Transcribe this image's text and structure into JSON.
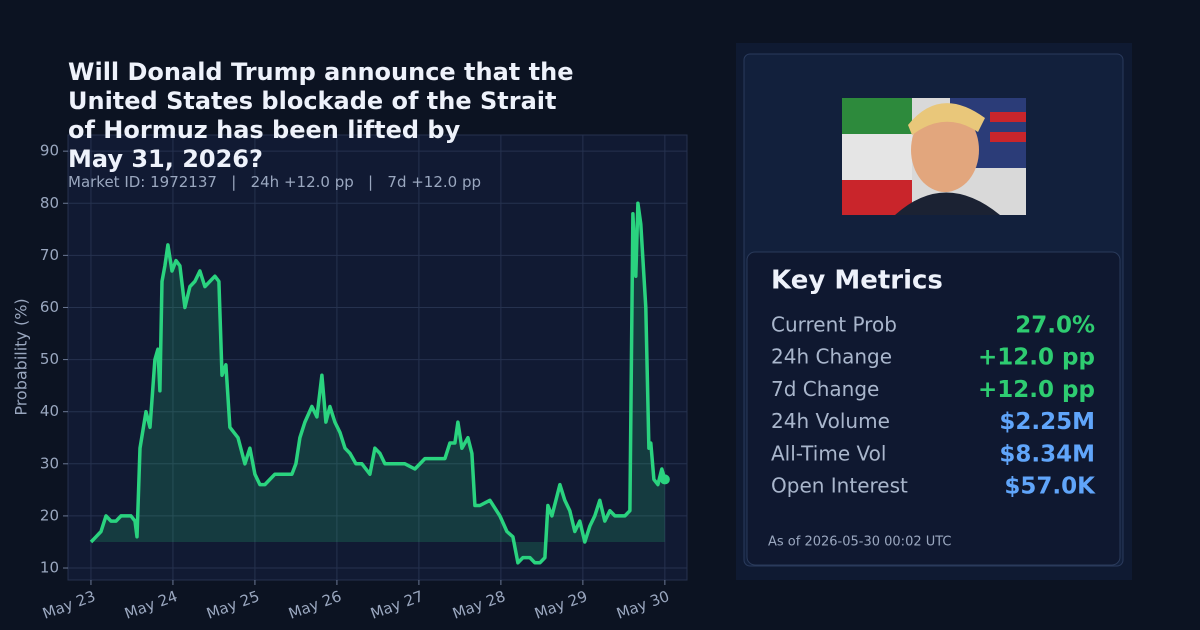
{
  "chart_data": {
    "type": "line",
    "title": "Will Donald Trump announce that the\nUnited States blockade of the Strait\nof Hormuz has been lifted by\nMay 31, 2026?",
    "subtitle": "Market ID: 1972137   |   24h +12.0 pp   |   7d +12.0 pp",
    "ylabel": "Probability (%)",
    "color": "#2ad37f",
    "area_baseline": 15,
    "grid": true,
    "end_marker": true,
    "x": [
      23.0,
      23.061,
      23.122,
      23.183,
      23.244,
      23.305,
      23.366,
      23.427,
      23.488,
      23.537,
      23.561,
      23.598,
      23.671,
      23.72,
      23.78,
      23.817,
      23.841,
      23.866,
      23.902,
      23.939,
      23.988,
      24.037,
      24.085,
      24.146,
      24.207,
      24.268,
      24.329,
      24.39,
      24.451,
      24.512,
      24.561,
      24.598,
      24.646,
      24.695,
      24.793,
      24.878,
      24.939,
      25.0,
      25.061,
      25.122,
      25.183,
      25.244,
      25.366,
      25.451,
      25.5,
      25.549,
      25.61,
      25.695,
      25.756,
      25.817,
      25.866,
      25.915,
      25.976,
      26.037,
      26.098,
      26.159,
      26.232,
      26.305,
      26.402,
      26.463,
      26.524,
      26.585,
      26.707,
      26.829,
      26.951,
      27.073,
      27.195,
      27.317,
      27.378,
      27.439,
      27.476,
      27.524,
      27.598,
      27.646,
      27.683,
      27.744,
      27.866,
      27.988,
      28.073,
      28.146,
      28.207,
      28.268,
      28.354,
      28.415,
      28.476,
      28.537,
      28.573,
      28.622,
      28.671,
      28.72,
      28.78,
      28.841,
      28.902,
      28.963,
      29.024,
      29.085,
      29.146,
      29.207,
      29.268,
      29.329,
      29.39,
      29.512,
      29.573,
      29.61,
      29.646,
      29.671,
      29.707,
      29.768,
      29.805,
      29.829,
      29.866,
      29.915,
      29.963,
      30.0
    ],
    "values": [
      15,
      16,
      17,
      20,
      19,
      19,
      20,
      20,
      20,
      19,
      16,
      33,
      40,
      37,
      50,
      52,
      44,
      65,
      68,
      72,
      67,
      69,
      68,
      60,
      64,
      65,
      67,
      64,
      65,
      66,
      65,
      47,
      49,
      37,
      35,
      30,
      33,
      28,
      26,
      26,
      27,
      28,
      28,
      28,
      30,
      35,
      38,
      41,
      39,
      47,
      38,
      41,
      38,
      36,
      33,
      32,
      30,
      30,
      28,
      33,
      32,
      30,
      30,
      30,
      29,
      31,
      31,
      31,
      34,
      34,
      38,
      33,
      35,
      32,
      22,
      22,
      23,
      20,
      17,
      16,
      11,
      12,
      12,
      11,
      11,
      12,
      22,
      20,
      23,
      26,
      23,
      21,
      17,
      19,
      15,
      18,
      20,
      23,
      19,
      21,
      20,
      20,
      21,
      78,
      66,
      80,
      76,
      60,
      33,
      34,
      27,
      26,
      29,
      27
    ],
    "xlim": [
      22.72,
      30.27
    ],
    "ylim": [
      7.7,
      93.1
    ],
    "xticks": [
      {
        "value": 23,
        "label": "May 23"
      },
      {
        "value": 24,
        "label": "May 24"
      },
      {
        "value": 25,
        "label": "May 25"
      },
      {
        "value": 26,
        "label": "May 26"
      },
      {
        "value": 27,
        "label": "May 27"
      },
      {
        "value": 28,
        "label": "May 28"
      },
      {
        "value": 29,
        "label": "May 29"
      },
      {
        "value": 30,
        "label": "May 30"
      }
    ],
    "yticks": [
      10,
      20,
      30,
      40,
      50,
      60,
      70,
      80,
      90
    ]
  },
  "panel": {
    "heading": "Key Metrics",
    "metrics": [
      {
        "label": "Current Prob",
        "value": "27.0%",
        "color": "#2ecc71"
      },
      {
        "label": "24h Change",
        "value": "+12.0 pp",
        "color": "#2ecc71"
      },
      {
        "label": "7d Change",
        "value": "+12.0 pp",
        "color": "#2ecc71"
      },
      {
        "label": "24h Volume",
        "value": "$2.25M",
        "color": "#60a5fa"
      },
      {
        "label": "All-Time Vol",
        "value": "$8.34M",
        "color": "#60a5fa"
      },
      {
        "label": "Open Interest",
        "value": "$57.0K",
        "color": "#60a5fa"
      }
    ],
    "as_of": "As of 2026-05-30 00:02 UTC"
  }
}
